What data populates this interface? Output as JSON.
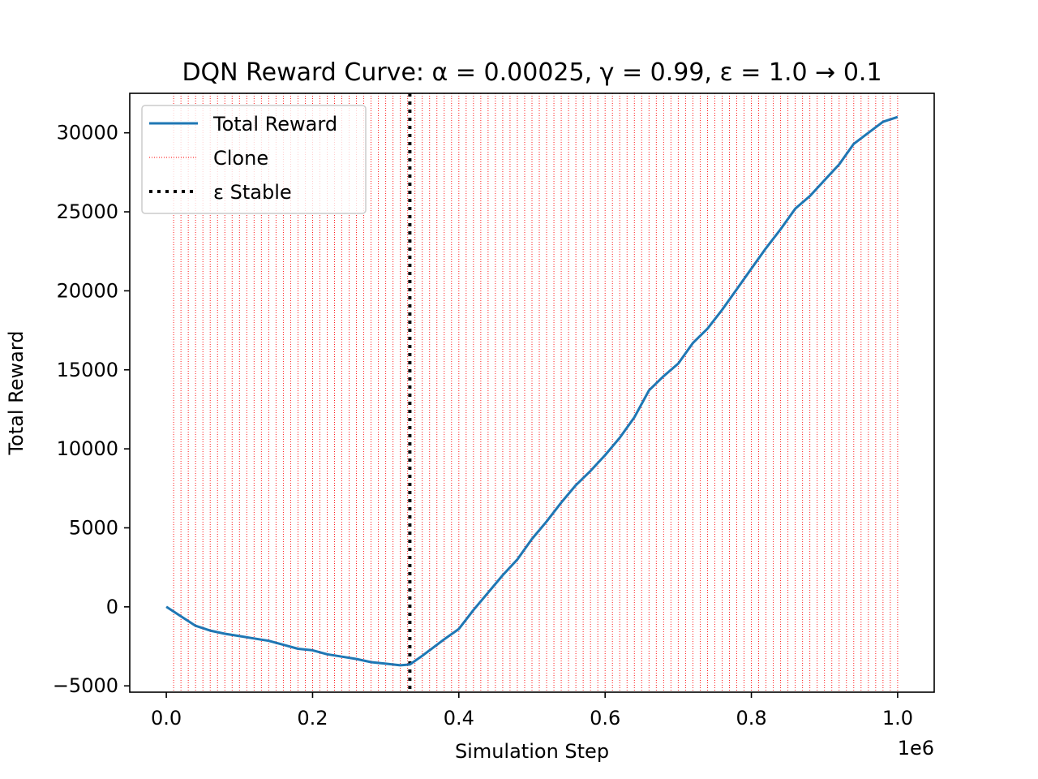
{
  "chart_data": {
    "type": "line",
    "title": "DQN Reward Curve: α = 0.00025, γ = 0.99, ε = 1.0 → 0.1",
    "xlabel": "Simulation Step",
    "ylabel": "Total Reward",
    "x_offset_label": "1e6",
    "xlim": [
      -50000,
      1050000
    ],
    "ylim": [
      -5400,
      32500
    ],
    "xticks": [
      0,
      200000,
      400000,
      600000,
      800000,
      1000000
    ],
    "xtick_labels": [
      "0.0",
      "0.2",
      "0.4",
      "0.6",
      "0.8",
      "1.0"
    ],
    "yticks": [
      -5000,
      0,
      5000,
      10000,
      15000,
      20000,
      25000,
      30000
    ],
    "ytick_labels": [
      "−5000",
      "0",
      "5000",
      "10000",
      "15000",
      "20000",
      "25000",
      "30000"
    ],
    "grid": false,
    "legend_position": "upper-left",
    "series": [
      {
        "name": "Total Reward",
        "color": "#1f77b4",
        "x": [
          0,
          20000,
          40000,
          60000,
          80000,
          100000,
          120000,
          140000,
          160000,
          180000,
          200000,
          220000,
          240000,
          260000,
          280000,
          300000,
          320000,
          333000,
          350000,
          360000,
          380000,
          400000,
          420000,
          440000,
          460000,
          480000,
          500000,
          520000,
          540000,
          560000,
          580000,
          600000,
          620000,
          640000,
          660000,
          680000,
          700000,
          720000,
          740000,
          760000,
          780000,
          800000,
          820000,
          840000,
          860000,
          880000,
          900000,
          920000,
          940000,
          960000,
          980000,
          1000000
        ],
        "y": [
          0,
          -600,
          -1200,
          -1500,
          -1700,
          -1850,
          -2000,
          -2150,
          -2400,
          -2650,
          -2750,
          -3000,
          -3150,
          -3300,
          -3500,
          -3600,
          -3700,
          -3650,
          -3100,
          -2750,
          -2050,
          -1400,
          -200,
          900,
          2000,
          3000,
          4300,
          5400,
          6600,
          7700,
          8600,
          9600,
          10700,
          12000,
          13700,
          14600,
          15400,
          16700,
          17600,
          18800,
          20100,
          21400,
          22700,
          23900,
          25200,
          26000,
          27000,
          28000,
          29300,
          30000,
          30700,
          31000
        ]
      },
      {
        "name": "Clone",
        "color": "#ff0000",
        "style": "dotted",
        "interval": 10000,
        "start": 10000,
        "end": 1000000
      },
      {
        "name": "ε Stable",
        "color": "#000000",
        "style": "dotted",
        "x": 333000
      }
    ]
  }
}
